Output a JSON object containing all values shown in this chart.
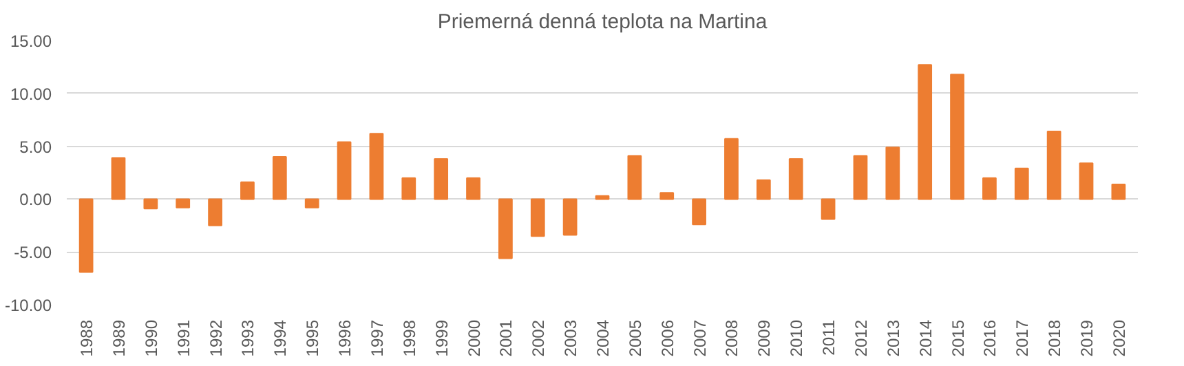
{
  "chart_data": {
    "type": "bar",
    "title": "Priemerná denná teplota na Martina",
    "categories": [
      "1988",
      "1989",
      "1990",
      "1991",
      "1992",
      "1993",
      "1994",
      "1995",
      "1996",
      "1997",
      "1998",
      "1999",
      "2000",
      "2001",
      "2002",
      "2003",
      "2004",
      "2005",
      "2006",
      "2007",
      "2008",
      "2009",
      "2010",
      "2011",
      "2012",
      "2013",
      "2014",
      "2015",
      "2016",
      "2017",
      "2018",
      "2019",
      "2020"
    ],
    "values": [
      -6.9,
      3.9,
      -0.9,
      -0.8,
      -2.5,
      1.6,
      4.0,
      -0.8,
      5.4,
      6.2,
      2.0,
      3.8,
      2.0,
      -5.6,
      -3.5,
      -3.4,
      0.3,
      4.1,
      0.6,
      -2.4,
      5.7,
      1.8,
      3.8,
      -1.9,
      4.1,
      4.9,
      12.7,
      11.8,
      2.0,
      2.9,
      6.4,
      3.4,
      1.4
    ],
    "color": "#ed7d31",
    "ylim": [
      -10,
      15
    ],
    "yticks": [
      {
        "value": -10,
        "label": "-10.00"
      },
      {
        "value": -5,
        "label": "-5.00"
      },
      {
        "value": 0,
        "label": "0.00"
      },
      {
        "value": 5,
        "label": "5.00"
      },
      {
        "value": 10,
        "label": "10.00"
      },
      {
        "value": 15,
        "label": "15.00"
      }
    ],
    "grid": "y"
  }
}
